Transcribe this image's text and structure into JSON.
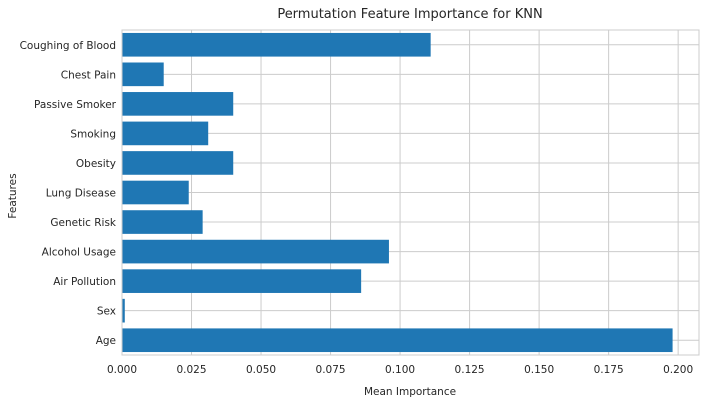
{
  "chart_data": {
    "type": "bar",
    "orientation": "horizontal",
    "title": "Permutation Feature Importance for KNN",
    "xlabel": "Mean Importance",
    "ylabel": "Features",
    "categories": [
      "Age",
      "Sex",
      "Air Pollution",
      "Alcohol Usage",
      "Genetic Risk",
      "Lung Disease",
      "Obesity",
      "Smoking",
      "Passive Smoker",
      "Chest Pain",
      "Coughing of Blood"
    ],
    "values": [
      0.198,
      0.001,
      0.086,
      0.096,
      0.029,
      0.024,
      0.04,
      0.031,
      0.04,
      0.015,
      0.111
    ],
    "xlim": [
      0,
      0.2075
    ],
    "xticks": [
      "0.000",
      "0.025",
      "0.050",
      "0.075",
      "0.100",
      "0.125",
      "0.150",
      "0.175",
      "0.200"
    ],
    "grid": true,
    "bar_color": "#1f77b4",
    "grid_color": "#cccccc"
  }
}
